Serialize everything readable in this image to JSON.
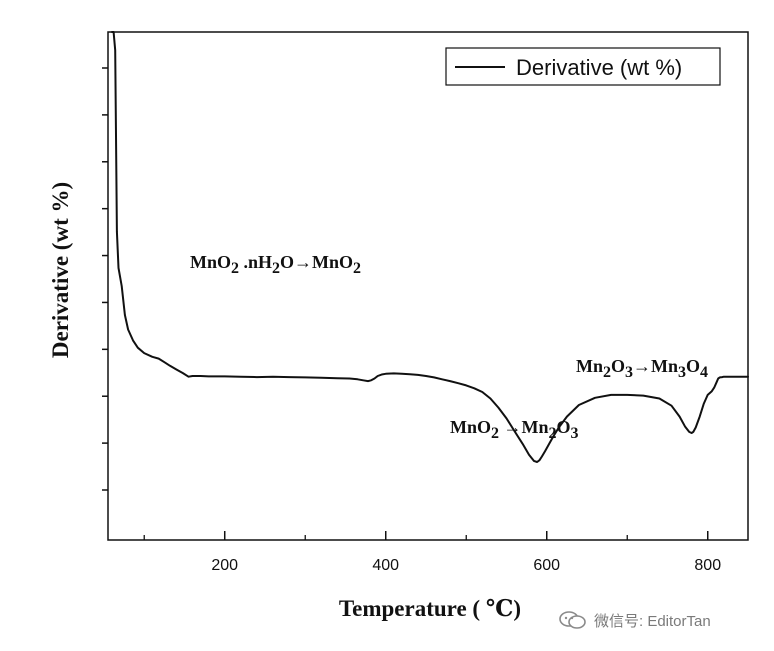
{
  "chart_data": {
    "type": "line",
    "title": "",
    "xlabel": "Temperature ( ℃)",
    "ylabel": "Derivative (wt %)",
    "xlim": [
      55,
      850
    ],
    "x_ticks": [
      200,
      400,
      600,
      800
    ],
    "x_tick_labels": [
      "200",
      "400",
      "600",
      "800"
    ],
    "y_tick_count": 10,
    "grid": false,
    "legend": {
      "position": "top-right",
      "label": "Derivative (wt %)"
    },
    "series": [
      {
        "name": "Derivative (wt %)",
        "x": [
          60,
          62,
          64,
          66,
          68,
          72,
          76,
          80,
          86,
          92,
          100,
          110,
          118,
          125,
          132,
          140,
          148,
          155,
          160,
          170,
          180,
          200,
          220,
          240,
          260,
          280,
          300,
          320,
          340,
          355,
          365,
          372,
          378,
          382,
          386,
          390,
          395,
          400,
          410,
          420,
          430,
          440,
          450,
          460,
          470,
          480,
          490,
          500,
          510,
          520,
          530,
          540,
          550,
          560,
          570,
          578,
          584,
          588,
          591,
          594,
          598,
          603,
          608,
          615,
          625,
          640,
          660,
          680,
          700,
          720,
          740,
          755,
          765,
          772,
          777,
          780,
          782,
          785,
          790,
          795,
          800,
          805,
          808,
          811,
          813,
          815,
          818,
          820,
          830,
          840,
          850
        ],
        "y": [
          42.0,
          41.0,
          31.5,
          26.5,
          25.5,
          25.0,
          24.2,
          23.8,
          23.5,
          23.3,
          23.15,
          23.05,
          23.0,
          22.9,
          22.8,
          22.7,
          22.6,
          22.5,
          22.52,
          22.52,
          22.51,
          22.51,
          22.5,
          22.49,
          22.5,
          22.49,
          22.48,
          22.47,
          22.46,
          22.45,
          22.43,
          22.4,
          22.38,
          22.4,
          22.45,
          22.52,
          22.56,
          22.58,
          22.59,
          22.58,
          22.57,
          22.55,
          22.52,
          22.48,
          22.43,
          22.38,
          22.32,
          22.26,
          22.18,
          22.08,
          21.9,
          21.65,
          21.35,
          21.0,
          20.65,
          20.35,
          20.18,
          20.15,
          20.2,
          20.3,
          20.45,
          20.65,
          20.85,
          21.1,
          21.4,
          21.72,
          21.92,
          22.0,
          22.0,
          21.98,
          21.9,
          21.7,
          21.4,
          21.12,
          20.98,
          20.95,
          20.98,
          21.1,
          21.4,
          21.75,
          22.0,
          22.1,
          22.2,
          22.35,
          22.45,
          22.48,
          22.49,
          22.5,
          22.5,
          22.5,
          22.5
        ]
      }
    ],
    "annotations": [
      {
        "text": "MnO2 .nH2O→MnO2",
        "x": 300,
        "y": 22.2
      },
      {
        "text": "MnO2 →Mn2O3",
        "x": 585,
        "y": 19.8
      },
      {
        "text": "Mn2O3→Mn3O4",
        "x": 755,
        "y": 20.7
      }
    ]
  },
  "watermark": {
    "text": "微信号: EditorTan",
    "icon": "wechat-icon"
  }
}
